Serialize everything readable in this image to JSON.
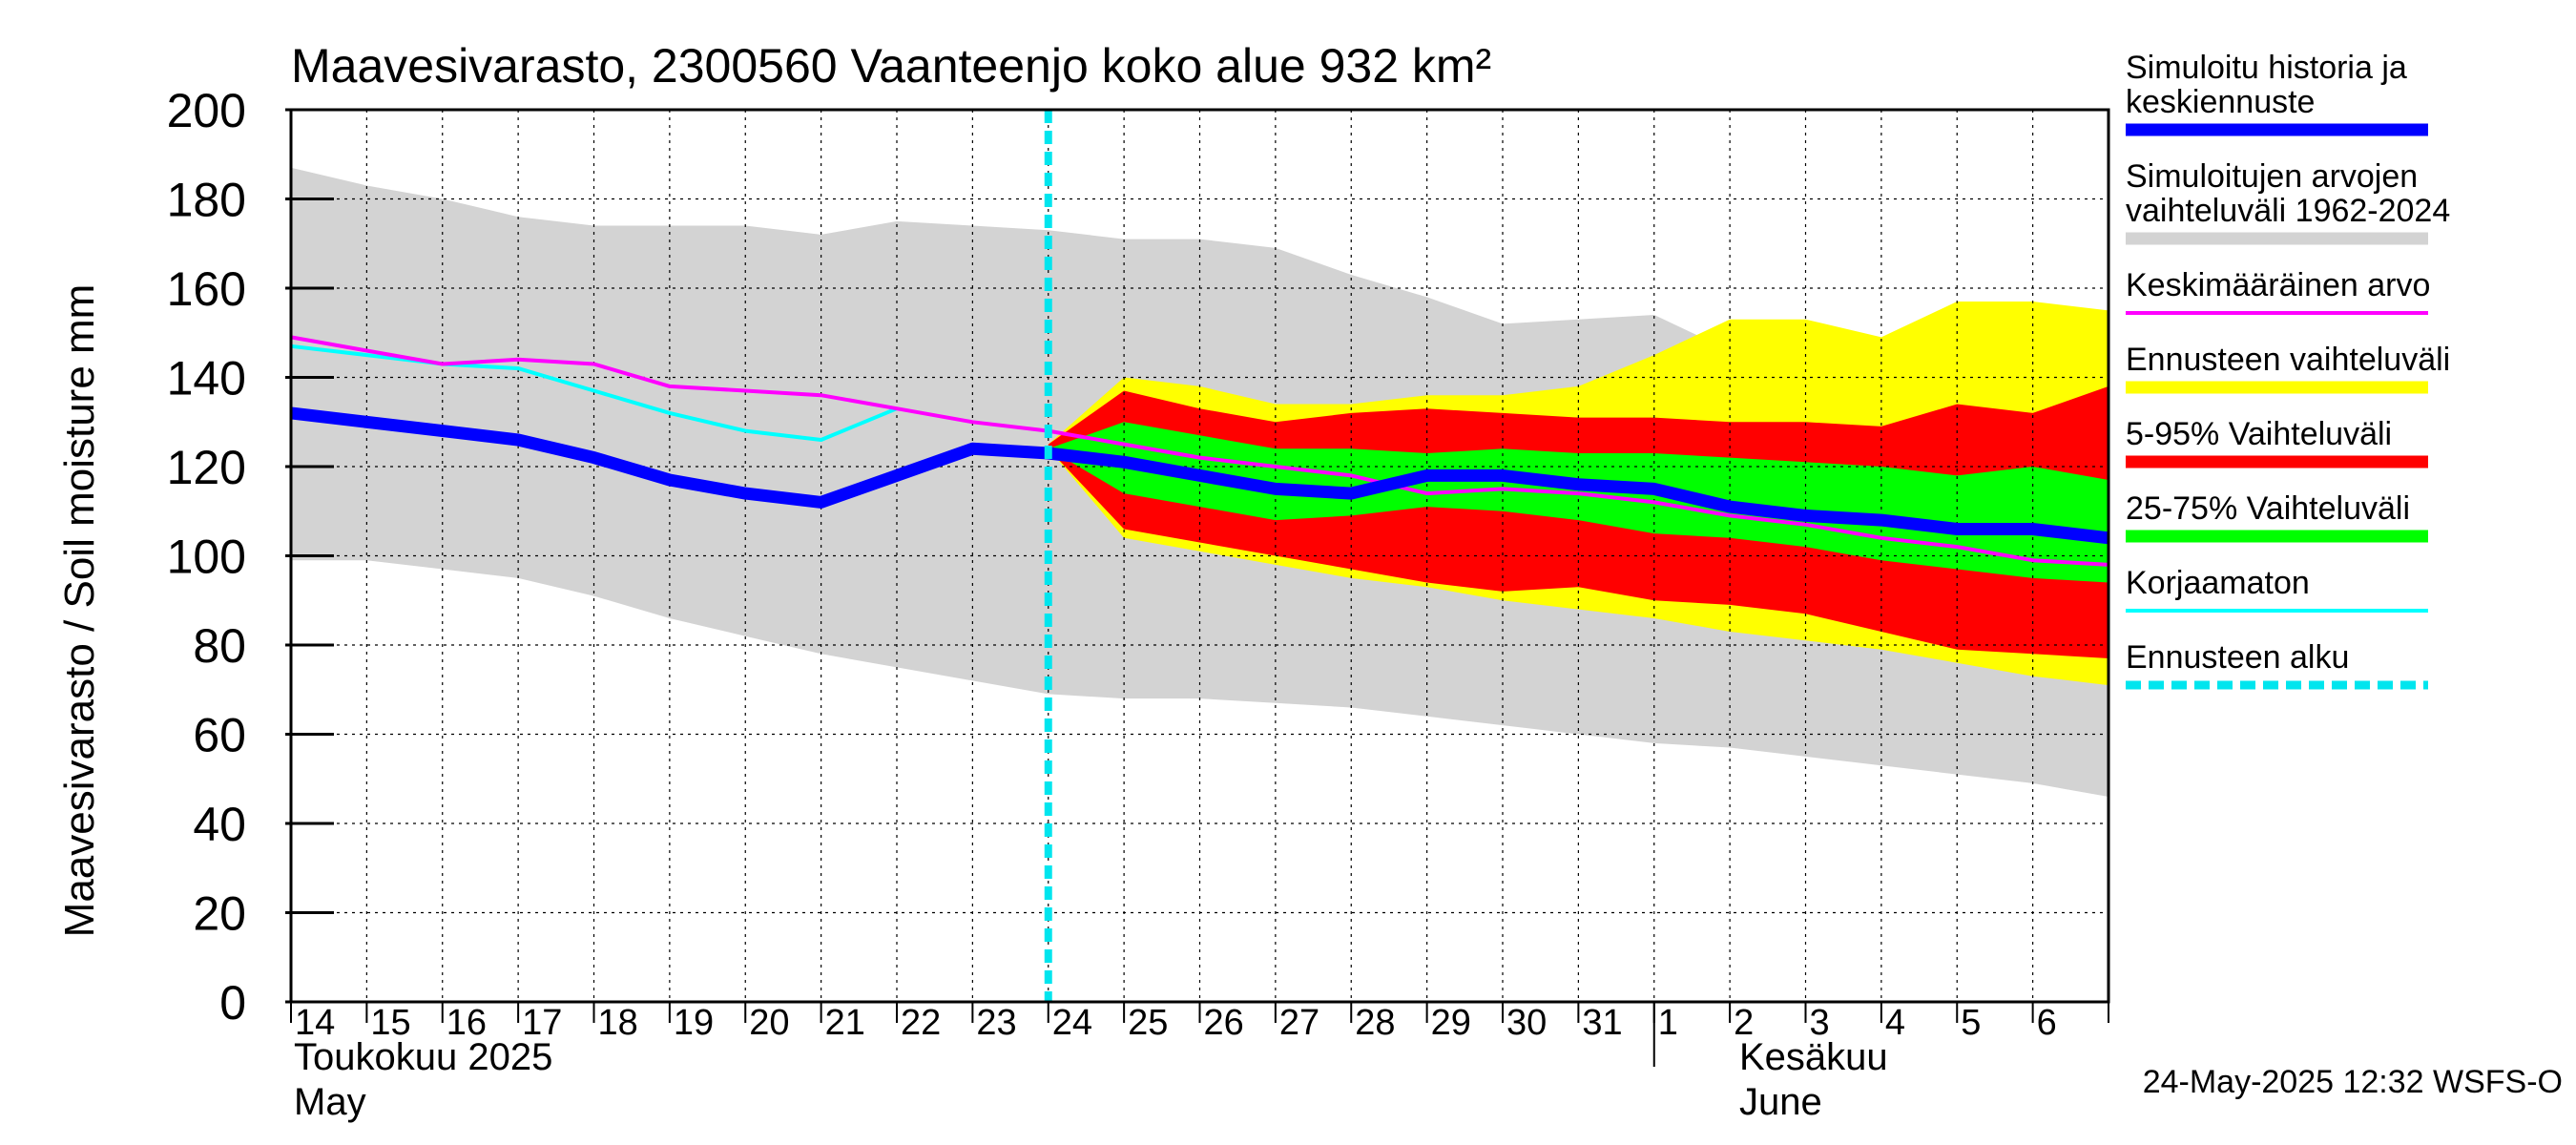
{
  "chart_data": {
    "type": "area",
    "title": "Maavesivarasto, 2300560 Vaanteenjo koko alue 932 km²",
    "ylabel": "Maavesivarasto / Soil moisture   mm",
    "ylim": [
      0,
      200
    ],
    "yticks": [
      0,
      20,
      40,
      60,
      80,
      100,
      120,
      140,
      160,
      180,
      200
    ],
    "xlim": [
      0,
      24
    ],
    "day_labels": [
      "14",
      "15",
      "16",
      "17",
      "18",
      "19",
      "20",
      "21",
      "22",
      "23",
      "24",
      "25",
      "26",
      "27",
      "28",
      "29",
      "30",
      "31",
      "1",
      "2",
      "3",
      "4",
      "5",
      "6"
    ],
    "month_labels": {
      "may_fi": "Toukokuu  2025",
      "may_en": "May",
      "june_fi": "Kesäkuu",
      "june_en": "June"
    },
    "june_start_x": 18,
    "forecast_start_x": 10,
    "footer": "24-May-2025 12:32 WSFS-O",
    "legend": [
      {
        "label_lines": [
          "Simuloitu historia ja",
          "keskiennuste"
        ],
        "color": "#0000ff",
        "style": "thick"
      },
      {
        "label_lines": [
          "Simuloitujen arvojen",
          "vaihteluväli 1962-2024"
        ],
        "color": "#d3d3d3",
        "style": "thick"
      },
      {
        "label_lines": [
          "Keskimääräinen arvo"
        ],
        "color": "#ff00ff",
        "style": "thin"
      },
      {
        "label_lines": [
          "Ennusteen vaihteluväli"
        ],
        "color": "#ffff00",
        "style": "thick"
      },
      {
        "label_lines": [
          "5-95% Vaihteluväli"
        ],
        "color": "#ff0000",
        "style": "thick"
      },
      {
        "label_lines": [
          "25-75% Vaihteluväli"
        ],
        "color": "#00ff00",
        "style": "thick"
      },
      {
        "label_lines": [
          "Korjaamaton"
        ],
        "color": "#00ffff",
        "style": "thin"
      },
      {
        "label_lines": [
          "Ennusteen alku"
        ],
        "color": "#00e5ee",
        "style": "dashed"
      }
    ],
    "series": {
      "hist_range": {
        "x": [
          0,
          1,
          2,
          3,
          4,
          5,
          6,
          7,
          8,
          9,
          10,
          11,
          12,
          13,
          14,
          15,
          16,
          17,
          18,
          19,
          20,
          21,
          22,
          23,
          24
        ],
        "upper": [
          187,
          183,
          180,
          176,
          174,
          174,
          174,
          172,
          175,
          174,
          173,
          171,
          171,
          169,
          163,
          158,
          152,
          153,
          154,
          146,
          145,
          142,
          139,
          136,
          134
        ],
        "lower": [
          99,
          99,
          97,
          95,
          91,
          86,
          82,
          78,
          75,
          72,
          69,
          68,
          68,
          67,
          66,
          64,
          62,
          60,
          58,
          57,
          55,
          53,
          51,
          49,
          46
        ]
      },
      "forecast_range": {
        "x": [
          10,
          11,
          12,
          13,
          14,
          15,
          16,
          17,
          18,
          19,
          20,
          21,
          22,
          23,
          24
        ],
        "upper": [
          125,
          140,
          138,
          134,
          134,
          136,
          136,
          138,
          145,
          153,
          153,
          149,
          157,
          157,
          155
        ],
        "lower": [
          124,
          104,
          101,
          98,
          95,
          93,
          90,
          88,
          86,
          83,
          81,
          79,
          76,
          73,
          71
        ]
      },
      "p5_95": {
        "x": [
          10,
          11,
          12,
          13,
          14,
          15,
          16,
          17,
          18,
          19,
          20,
          21,
          22,
          23,
          24
        ],
        "upper": [
          125,
          137,
          133,
          130,
          132,
          133,
          132,
          131,
          131,
          130,
          130,
          129,
          134,
          132,
          138
        ],
        "lower": [
          124,
          106,
          103,
          100,
          97,
          94,
          92,
          93,
          90,
          89,
          87,
          83,
          79,
          78,
          77
        ]
      },
      "p25_75": {
        "x": [
          10,
          11,
          12,
          13,
          14,
          15,
          16,
          17,
          18,
          19,
          20,
          21,
          22,
          23,
          24
        ],
        "upper": [
          124,
          130,
          127,
          124,
          124,
          123,
          124,
          123,
          123,
          122,
          121,
          120,
          118,
          120,
          117
        ],
        "lower": [
          124,
          114,
          111,
          108,
          109,
          111,
          110,
          108,
          105,
          104,
          102,
          99,
          97,
          95,
          94
        ]
      },
      "mean": {
        "x": [
          0,
          1,
          2,
          3,
          4,
          5,
          6,
          7,
          8,
          9,
          10,
          11,
          12,
          13,
          14,
          15,
          16,
          17,
          18,
          19,
          20,
          21,
          22,
          23,
          24
        ],
        "y": [
          149,
          146,
          143,
          144,
          143,
          138,
          137,
          136,
          133,
          130,
          128,
          125,
          122,
          120,
          118,
          114,
          115,
          114,
          112,
          109,
          107,
          104,
          102,
          99,
          98
        ]
      },
      "uncorrected": {
        "x": [
          0,
          1,
          2,
          3,
          4,
          5,
          6,
          7,
          8
        ],
        "y": [
          147,
          145,
          143,
          142,
          137,
          132,
          128,
          126,
          133
        ]
      },
      "simulated": {
        "x": [
          0,
          1,
          2,
          3,
          4,
          5,
          6,
          7,
          8,
          9,
          10,
          11,
          12,
          13,
          14,
          15,
          16,
          17,
          18,
          19,
          20,
          21,
          22,
          23,
          24
        ],
        "y": [
          132,
          130,
          128,
          126,
          122,
          117,
          114,
          112,
          118,
          124,
          123,
          121,
          118,
          115,
          114,
          118,
          118,
          116,
          115,
          111,
          109,
          108,
          106,
          106,
          104
        ]
      }
    }
  }
}
